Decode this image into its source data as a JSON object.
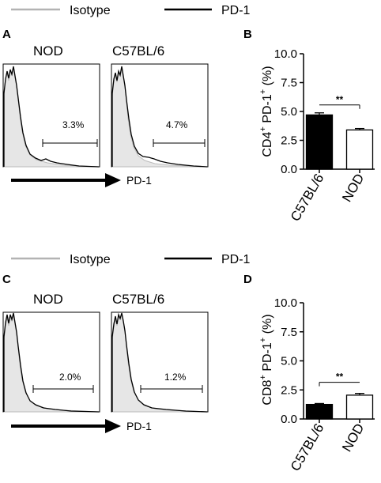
{
  "legend": {
    "isotype_label": "Isotype",
    "pd1_label": "PD-1",
    "isotype_color": "#b3b3b3",
    "pd1_color": "#000000"
  },
  "panels": {
    "A": {
      "letter": "A",
      "arrow_label": "PD-1"
    },
    "B": {
      "letter": "B"
    },
    "C": {
      "letter": "C",
      "arrow_label": "PD-1"
    },
    "D": {
      "letter": "D"
    }
  },
  "chart_data": [
    {
      "panel": "A",
      "type": "histogram",
      "x_marker": "PD-1",
      "histograms": [
        {
          "sample": "NOD",
          "gate_percent": "3.3%",
          "series": [
            "Isotype",
            "PD-1"
          ]
        },
        {
          "sample": "C57BL/6",
          "gate_percent": "4.7%",
          "series": [
            "Isotype",
            "PD-1"
          ]
        }
      ]
    },
    {
      "panel": "B",
      "type": "bar",
      "categories": [
        "C57BL/6",
        "NOD"
      ],
      "values": [
        4.7,
        3.4
      ],
      "errors": [
        0.18,
        0.12
      ],
      "bar_fill": [
        "#000000",
        "#ffffff"
      ],
      "ylabel_main": "CD4",
      "ylabel_sup1": "+",
      "ylabel_mid": " PD-1",
      "ylabel_sup2": "+",
      "ylabel_unit": " (%)",
      "ylim": [
        0,
        10
      ],
      "yticks": [
        "0.0",
        "2.5",
        "5.0",
        "7.5",
        "10.0"
      ],
      "significance": "**"
    },
    {
      "panel": "C",
      "type": "histogram",
      "x_marker": "PD-1",
      "histograms": [
        {
          "sample": "NOD",
          "gate_percent": "2.0%",
          "series": [
            "Isotype",
            "PD-1"
          ]
        },
        {
          "sample": "C57BL/6",
          "gate_percent": "1.2%",
          "series": [
            "Isotype",
            "PD-1"
          ]
        }
      ]
    },
    {
      "panel": "D",
      "type": "bar",
      "categories": [
        "C57BL/6",
        "NOD"
      ],
      "values": [
        1.25,
        2.05
      ],
      "errors": [
        0.08,
        0.15
      ],
      "bar_fill": [
        "#000000",
        "#ffffff"
      ],
      "ylabel_main": "CD8",
      "ylabel_sup1": "+",
      "ylabel_mid": " PD-1",
      "ylabel_sup2": "+",
      "ylabel_unit": " (%)",
      "ylim": [
        0,
        10
      ],
      "yticks": [
        "0.0",
        "2.5",
        "5.0",
        "7.5",
        "10.0"
      ],
      "significance": "**"
    }
  ]
}
